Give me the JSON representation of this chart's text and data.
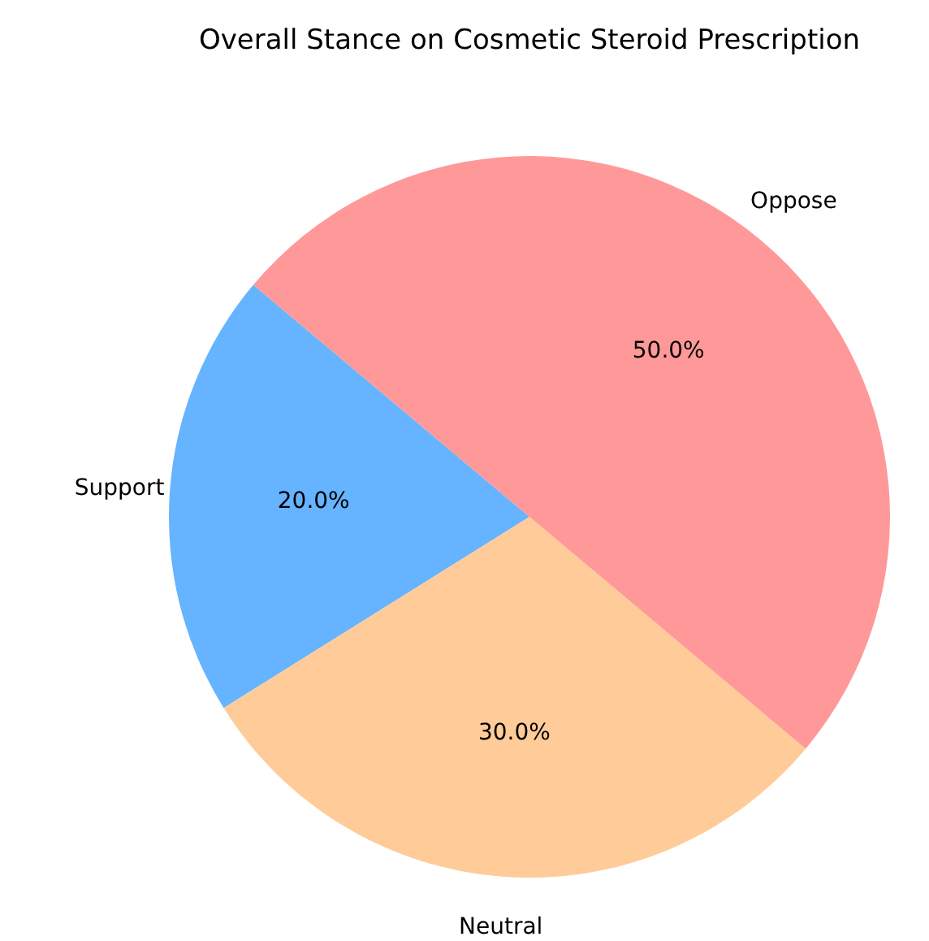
{
  "chart_data": {
    "type": "pie",
    "title": "Overall Stance on Cosmetic Steroid Prescription",
    "categories": [
      "Support",
      "Neutral",
      "Oppose"
    ],
    "values": [
      20,
      30,
      50
    ],
    "colors": [
      "#66b3ff",
      "#ffcc99",
      "#ff9999"
    ],
    "value_labels": [
      "20.0%",
      "30.0%",
      "50.0%"
    ]
  }
}
